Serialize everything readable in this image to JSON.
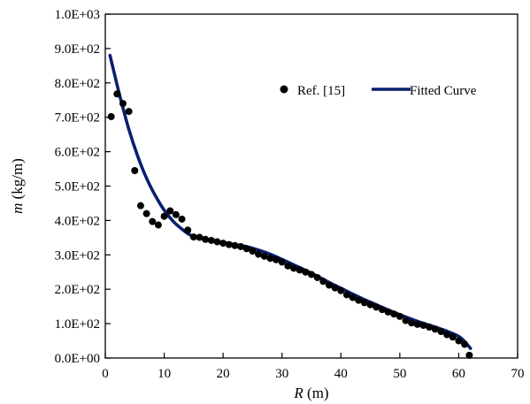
{
  "chart_data": {
    "type": "scatter",
    "title": "",
    "xlabel": {
      "symbol": "R",
      "unit": " (m)"
    },
    "ylabel": {
      "symbol": "m",
      "unit": "  (kg/m)"
    },
    "xlim": [
      0,
      70
    ],
    "ylim": [
      0,
      1000
    ],
    "xticks": [
      0,
      10,
      20,
      30,
      40,
      50,
      60,
      70
    ],
    "yticks": [
      0,
      100,
      200,
      300,
      400,
      500,
      600,
      700,
      800,
      900,
      1000
    ],
    "xtick_labels": [
      "0",
      "10",
      "20",
      "30",
      "40",
      "50",
      "60",
      "70"
    ],
    "ytick_labels": [
      "0.0E+00",
      "1.0E+02",
      "2.0E+02",
      "3.0E+02",
      "4.0E+02",
      "5.0E+02",
      "6.0E+02",
      "7.0E+02",
      "8.0E+02",
      "9.0E+02",
      "1.0E+03"
    ],
    "grid": false,
    "legend_placement": "top-right",
    "series": [
      {
        "name": "Ref. [15]",
        "kind": "scatter",
        "color": "#000000",
        "points": [
          [
            1.0,
            702
          ],
          [
            2.0,
            768
          ],
          [
            3.0,
            740
          ],
          [
            4.0,
            717
          ],
          [
            5.0,
            545
          ],
          [
            6.0,
            443
          ],
          [
            7.0,
            420
          ],
          [
            8.0,
            397
          ],
          [
            9.0,
            387
          ],
          [
            10.0,
            412
          ],
          [
            11.0,
            428
          ],
          [
            12.0,
            417
          ],
          [
            13.0,
            404
          ],
          [
            14.0,
            372
          ],
          [
            15.0,
            352
          ],
          [
            16.0,
            351
          ],
          [
            17.0,
            345
          ],
          [
            18.0,
            342
          ],
          [
            19.0,
            338
          ],
          [
            20.0,
            334
          ],
          [
            21.0,
            330
          ],
          [
            22.0,
            327
          ],
          [
            23.0,
            324
          ],
          [
            24.0,
            318
          ],
          [
            25.0,
            311
          ],
          [
            26.0,
            302
          ],
          [
            27.0,
            296
          ],
          [
            28.0,
            290
          ],
          [
            29.0,
            286
          ],
          [
            30.0,
            279
          ],
          [
            31.0,
            268
          ],
          [
            32.0,
            261
          ],
          [
            33.0,
            256
          ],
          [
            34.0,
            250
          ],
          [
            35.0,
            243
          ],
          [
            36.0,
            234
          ],
          [
            37.0,
            223
          ],
          [
            38.0,
            212
          ],
          [
            39.0,
            204
          ],
          [
            40.0,
            196
          ],
          [
            41.0,
            184
          ],
          [
            42.0,
            176
          ],
          [
            43.0,
            168
          ],
          [
            44.0,
            161
          ],
          [
            45.0,
            155
          ],
          [
            46.0,
            148
          ],
          [
            47.0,
            141
          ],
          [
            48.0,
            134
          ],
          [
            49.0,
            128
          ],
          [
            50.0,
            121
          ],
          [
            51.0,
            109
          ],
          [
            52.0,
            102
          ],
          [
            53.0,
            98
          ],
          [
            54.0,
            95
          ],
          [
            55.0,
            90
          ],
          [
            56.0,
            84
          ],
          [
            57.0,
            77
          ],
          [
            58.0,
            68
          ],
          [
            59.0,
            61
          ],
          [
            60.0,
            50
          ],
          [
            61.0,
            40
          ],
          [
            61.8,
            8
          ]
        ]
      },
      {
        "name": "Fitted Curve",
        "kind": "line",
        "color": "#0a1f6e",
        "points": [
          [
            0.8,
            880
          ],
          [
            1.5,
            830
          ],
          [
            2.5,
            760
          ],
          [
            4,
            665
          ],
          [
            5.5,
            587
          ],
          [
            7,
            523
          ],
          [
            8.5,
            472
          ],
          [
            10,
            430
          ],
          [
            11.5,
            398
          ],
          [
            13,
            375
          ],
          [
            14.5,
            357
          ],
          [
            16,
            350
          ],
          [
            18,
            343
          ],
          [
            20,
            336
          ],
          [
            22,
            330
          ],
          [
            24,
            324
          ],
          [
            26,
            314
          ],
          [
            28,
            302
          ],
          [
            30,
            287
          ],
          [
            32,
            271
          ],
          [
            34,
            255
          ],
          [
            36,
            238
          ],
          [
            38,
            220
          ],
          [
            40,
            203
          ],
          [
            42,
            186
          ],
          [
            44,
            170
          ],
          [
            46,
            155
          ],
          [
            48,
            140
          ],
          [
            50,
            126
          ],
          [
            52,
            113
          ],
          [
            54,
            101
          ],
          [
            56,
            90
          ],
          [
            58,
            78
          ],
          [
            60,
            63
          ],
          [
            61,
            48
          ],
          [
            62,
            28
          ]
        ]
      }
    ]
  }
}
